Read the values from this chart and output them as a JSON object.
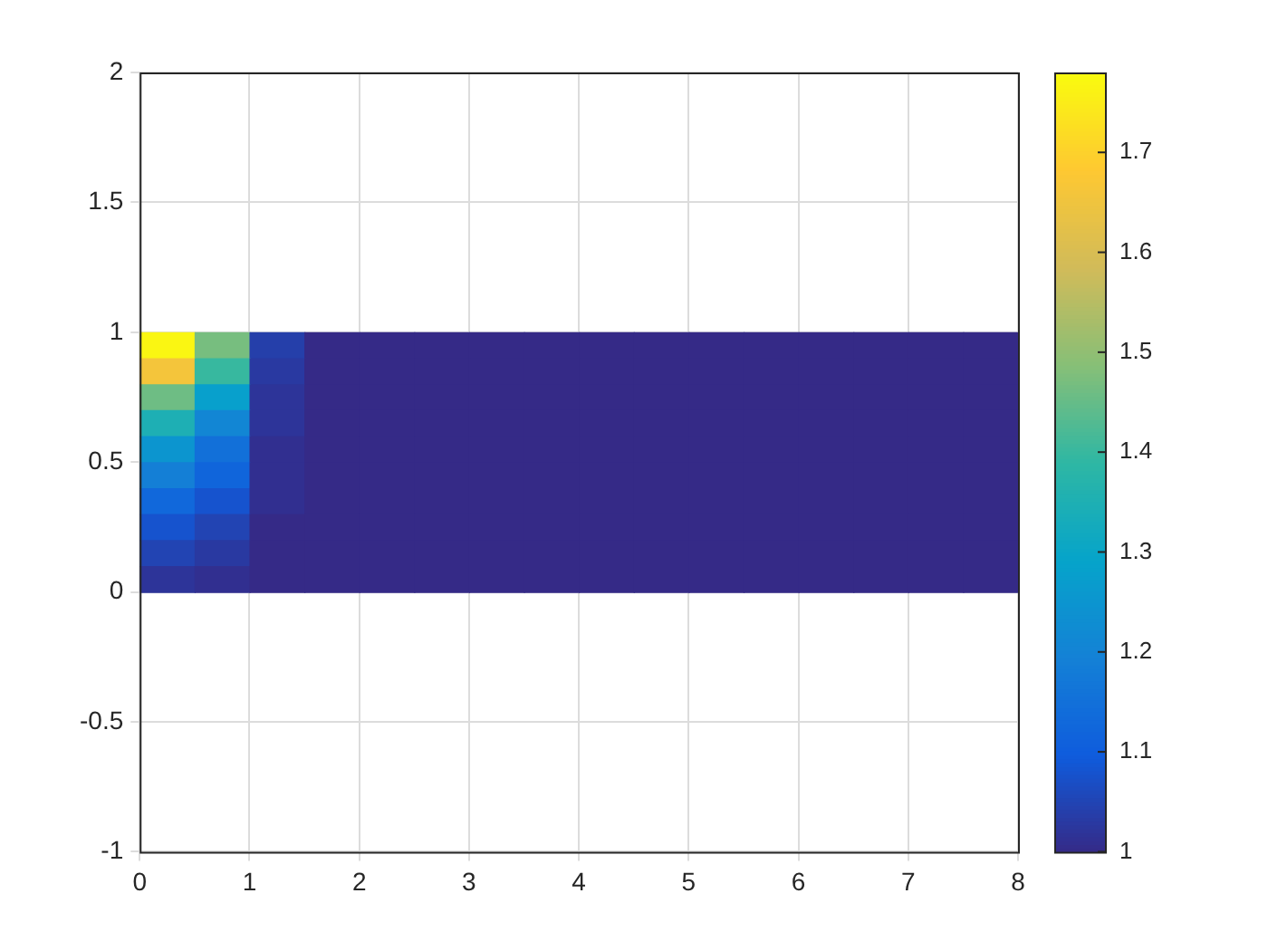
{
  "chart_data": {
    "type": "heatmap",
    "x": [
      0.25,
      0.75,
      1.25,
      1.75,
      2.25,
      2.75,
      3.25,
      3.75,
      4.25,
      4.75,
      5.25,
      5.75,
      6.25,
      6.75,
      7.25,
      7.75
    ],
    "y": [
      0.95,
      0.85,
      0.75,
      0.65,
      0.55,
      0.45,
      0.35,
      0.25,
      0.15,
      0.05
    ],
    "xlim": [
      0,
      8
    ],
    "xticks": [
      0,
      1,
      2,
      3,
      4,
      5,
      6,
      7,
      8
    ],
    "ylim": [
      -1,
      2
    ],
    "yticks": [
      -1,
      -0.5,
      0,
      0.5,
      1,
      1.5,
      2
    ],
    "clim": [
      1,
      1.78
    ],
    "cticks": [
      1,
      1.1,
      1.2,
      1.3,
      1.4,
      1.5,
      1.6,
      1.7
    ],
    "grid": true,
    "cells": [
      [
        1.77,
        1.47,
        1.04,
        1,
        1,
        1,
        1,
        1,
        1,
        1,
        1,
        1,
        1,
        1,
        1,
        1
      ],
      [
        1.66,
        1.4,
        1.03,
        1,
        1,
        1,
        1,
        1,
        1,
        1,
        1,
        1,
        1,
        1,
        1,
        1
      ],
      [
        1.46,
        1.28,
        1.02,
        1,
        1,
        1,
        1,
        1,
        1,
        1,
        1,
        1,
        1,
        1,
        1,
        1
      ],
      [
        1.35,
        1.21,
        1.02,
        1,
        1,
        1,
        1,
        1,
        1,
        1,
        1,
        1,
        1,
        1,
        1,
        1
      ],
      [
        1.25,
        1.15,
        1.01,
        1,
        1,
        1,
        1,
        1,
        1,
        1,
        1,
        1,
        1,
        1,
        1,
        1
      ],
      [
        1.19,
        1.12,
        1.01,
        1,
        1,
        1,
        1,
        1,
        1,
        1,
        1,
        1,
        1,
        1,
        1,
        1
      ],
      [
        1.13,
        1.08,
        1.01,
        1,
        1,
        1,
        1,
        1,
        1,
        1,
        1,
        1,
        1,
        1,
        1,
        1
      ],
      [
        1.08,
        1.05,
        1,
        1,
        1,
        1,
        1,
        1,
        1,
        1,
        1,
        1,
        1,
        1,
        1,
        1
      ],
      [
        1.05,
        1.03,
        1,
        1,
        1,
        1,
        1,
        1,
        1,
        1,
        1,
        1,
        1,
        1,
        1,
        1
      ],
      [
        1.02,
        1.01,
        1,
        1,
        1,
        1,
        1,
        1,
        1,
        1,
        1,
        1,
        1,
        1,
        1,
        1
      ]
    ]
  }
}
